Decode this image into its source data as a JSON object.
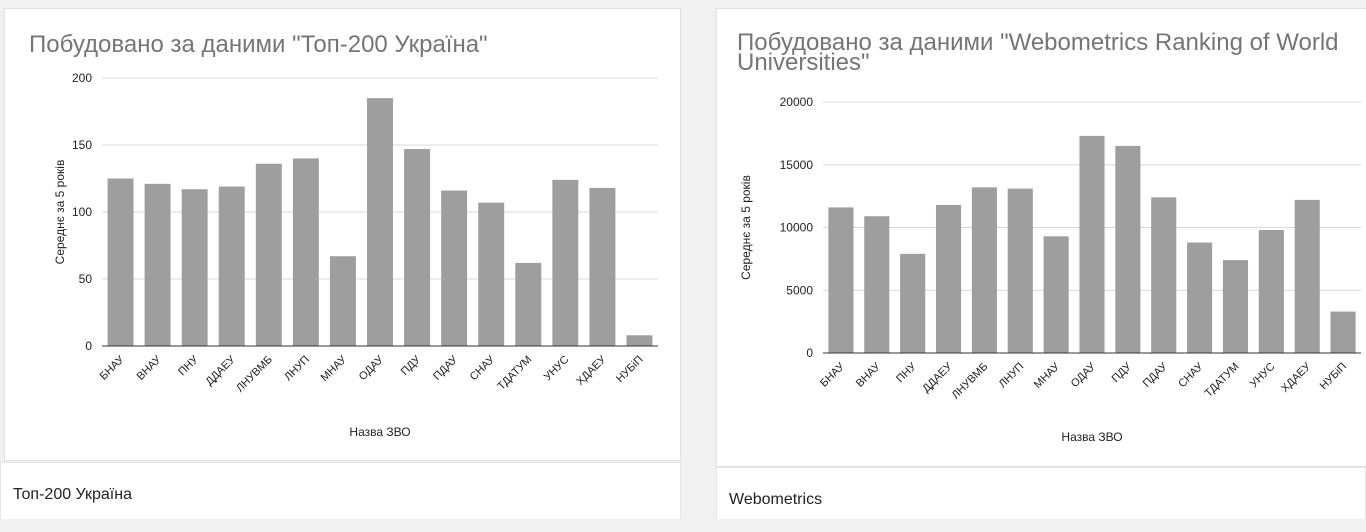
{
  "chart_data": [
    {
      "type": "bar",
      "title": "Побудовано за даними \"Топ-200 Україна\"",
      "xlabel": "Назва ЗВО",
      "ylabel": "Середнє за 5 років",
      "ylim": [
        0,
        200
      ],
      "yticks": [
        "0",
        "50",
        "100",
        "150",
        "200"
      ],
      "grid": true,
      "categories": [
        "БНАУ",
        "ВНАУ",
        "ПНУ",
        "ДДАЕУ",
        "ЛНУВМБ",
        "ЛНУП",
        "МНАУ",
        "ОДАУ",
        "ПДУ",
        "ПДАУ",
        "СНАУ",
        "ТДАТУМ",
        "УНУС",
        "ХДАЕУ",
        "НУБіП"
      ],
      "values": [
        125,
        121,
        117,
        119,
        136,
        140,
        67,
        185,
        147,
        116,
        107,
        62,
        124,
        118,
        8
      ],
      "bar_color": "#9e9e9e"
    },
    {
      "type": "bar",
      "title": "Побудовано за даними \"Webometrics Ranking of World Universities\"",
      "xlabel": "Назва ЗВО",
      "ylabel": "Середнє за 5 років",
      "ylim": [
        0,
        20000
      ],
      "yticks": [
        "0",
        "5000",
        "10000",
        "15000",
        "20000"
      ],
      "grid": true,
      "categories": [
        "БНАУ",
        "ВНАУ",
        "ПНУ",
        "ДДАЕУ",
        "ЛНУВМБ",
        "ЛНУП",
        "МНАУ",
        "ОДАУ",
        "ПДУ",
        "ПДАУ",
        "СНАУ",
        "ТДАТУМ",
        "УНУС",
        "ХДАЕУ",
        "НУБіП"
      ],
      "values": [
        11600,
        10900,
        7900,
        11800,
        13200,
        13100,
        9300,
        17300,
        16500,
        12400,
        8800,
        7400,
        9800,
        12200,
        3300
      ],
      "bar_color": "#9e9e9e"
    }
  ],
  "captions": {
    "left": "Топ-200 Україна",
    "right": "Webometrics"
  },
  "colors": {
    "background": "#f1f1f1",
    "card": "#ffffff",
    "title": "#757575",
    "grid": "#d9d9d9",
    "bar": "#9e9e9e"
  }
}
